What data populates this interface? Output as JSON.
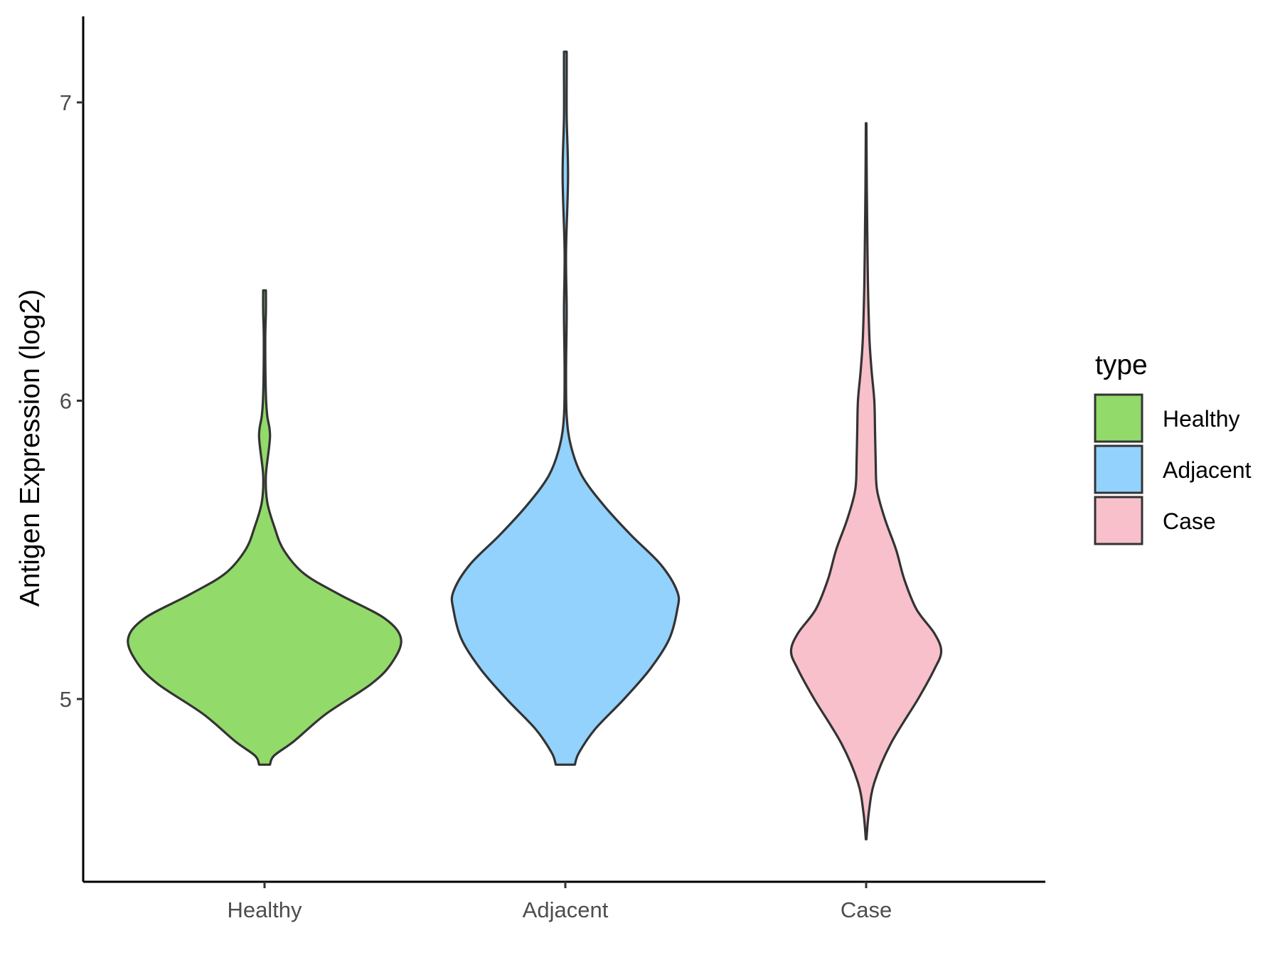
{
  "chart_data": {
    "type": "violin",
    "title": "",
    "xlabel": "",
    "ylabel": "Antigen Expression (log2)",
    "ylim": [
      4.41,
      7.31
    ],
    "yticks": [
      "5",
      "6",
      "7"
    ],
    "categories": [
      "Healthy",
      "Adjacent",
      "Case"
    ],
    "legend": {
      "title": "type",
      "position": "right",
      "entries": [
        "Healthy",
        "Adjacent",
        "Case"
      ]
    },
    "grid": false,
    "series": [
      {
        "name": "Healthy",
        "color": "#92da6a",
        "min": 4.78,
        "max": 6.37,
        "profile": [
          [
            4.78,
            0.04
          ],
          [
            4.81,
            0.07
          ],
          [
            4.86,
            0.22
          ],
          [
            4.95,
            0.45
          ],
          [
            5.05,
            0.78
          ],
          [
            5.12,
            0.93
          ],
          [
            5.2,
            1.0
          ],
          [
            5.27,
            0.88
          ],
          [
            5.35,
            0.55
          ],
          [
            5.42,
            0.29
          ],
          [
            5.5,
            0.14
          ],
          [
            5.58,
            0.07
          ],
          [
            5.66,
            0.02
          ],
          [
            5.75,
            0.01
          ],
          [
            5.88,
            0.04
          ],
          [
            5.95,
            0.02
          ],
          [
            6.02,
            0.01
          ],
          [
            6.2,
            0.005
          ],
          [
            6.3,
            0.01
          ],
          [
            6.37,
            0.01
          ]
        ]
      },
      {
        "name": "Adjacent",
        "color": "#92d2fd",
        "min": 4.78,
        "max": 7.17,
        "profile": [
          [
            4.78,
            0.07
          ],
          [
            4.82,
            0.1
          ],
          [
            4.9,
            0.22
          ],
          [
            5.0,
            0.43
          ],
          [
            5.1,
            0.62
          ],
          [
            5.2,
            0.76
          ],
          [
            5.3,
            0.82
          ],
          [
            5.36,
            0.82
          ],
          [
            5.45,
            0.7
          ],
          [
            5.55,
            0.48
          ],
          [
            5.65,
            0.28
          ],
          [
            5.75,
            0.12
          ],
          [
            5.85,
            0.04
          ],
          [
            5.95,
            0.01
          ],
          [
            6.1,
            0.005
          ],
          [
            6.3,
            0.01
          ],
          [
            6.5,
            0.005
          ],
          [
            6.75,
            0.02
          ],
          [
            6.95,
            0.01
          ],
          [
            7.1,
            0.01
          ],
          [
            7.17,
            0.01
          ]
        ]
      },
      {
        "name": "Case",
        "color": "#f7c0cb",
        "min": 4.53,
        "max": 6.93,
        "profile": [
          [
            4.53,
            0.002
          ],
          [
            4.62,
            0.02
          ],
          [
            4.72,
            0.06
          ],
          [
            4.85,
            0.18
          ],
          [
            5.0,
            0.38
          ],
          [
            5.1,
            0.5
          ],
          [
            5.16,
            0.55
          ],
          [
            5.22,
            0.5
          ],
          [
            5.3,
            0.37
          ],
          [
            5.4,
            0.28
          ],
          [
            5.5,
            0.22
          ],
          [
            5.6,
            0.14
          ],
          [
            5.7,
            0.08
          ],
          [
            5.8,
            0.07
          ],
          [
            5.9,
            0.065
          ],
          [
            6.0,
            0.06
          ],
          [
            6.1,
            0.04
          ],
          [
            6.2,
            0.025
          ],
          [
            6.35,
            0.015
          ],
          [
            6.5,
            0.01
          ],
          [
            6.7,
            0.005
          ],
          [
            6.93,
            0.002
          ]
        ]
      }
    ]
  }
}
